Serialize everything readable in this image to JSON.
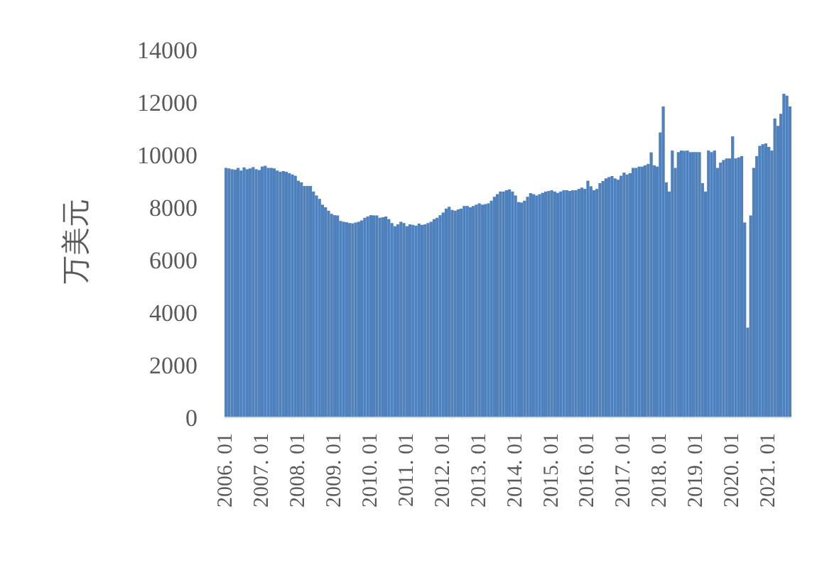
{
  "chart_data": {
    "type": "bar",
    "ylabel": "万美元",
    "color": "#4f81bd",
    "ylim": [
      0,
      14000
    ],
    "yticks": [
      0,
      2000,
      4000,
      6000,
      8000,
      10000,
      12000,
      14000
    ],
    "grid": false,
    "categories": [
      "2006. 01",
      null,
      null,
      null,
      null,
      null,
      null,
      null,
      null,
      null,
      null,
      null,
      "2007. 01",
      null,
      null,
      null,
      null,
      null,
      null,
      null,
      null,
      null,
      null,
      null,
      "2008. 01",
      null,
      null,
      null,
      null,
      null,
      null,
      null,
      null,
      null,
      null,
      null,
      "2009. 01",
      null,
      null,
      null,
      null,
      null,
      null,
      null,
      null,
      null,
      null,
      null,
      "2010. 01",
      null,
      null,
      null,
      null,
      null,
      null,
      null,
      null,
      null,
      null,
      null,
      "2011. 01",
      null,
      null,
      null,
      null,
      null,
      null,
      null,
      null,
      null,
      null,
      null,
      "2012. 01",
      null,
      null,
      null,
      null,
      null,
      null,
      null,
      null,
      null,
      null,
      null,
      "2013. 01",
      null,
      null,
      null,
      null,
      null,
      null,
      null,
      null,
      null,
      null,
      null,
      "2014. 01",
      null,
      null,
      null,
      null,
      null,
      null,
      null,
      null,
      null,
      null,
      null,
      "2015. 01",
      null,
      null,
      null,
      null,
      null,
      null,
      null,
      null,
      null,
      null,
      null,
      "2016. 01",
      null,
      null,
      null,
      null,
      null,
      null,
      null,
      null,
      null,
      null,
      null,
      "2017. 01",
      null,
      null,
      null,
      null,
      null,
      null,
      null,
      null,
      null,
      null,
      null,
      "2018. 01",
      null,
      null,
      null,
      null,
      null,
      null,
      null,
      null,
      null,
      null,
      null,
      "2019. 01",
      null,
      null,
      null,
      null,
      null,
      null,
      null,
      null,
      null,
      null,
      null,
      "2020. 01",
      null,
      null,
      null,
      null,
      null,
      null,
      null,
      null,
      null,
      null,
      null,
      "2021. 01",
      null,
      null,
      null,
      null,
      null,
      null,
      null
    ],
    "values": [
      9500,
      9480,
      9450,
      9430,
      9500,
      9400,
      9520,
      9450,
      9480,
      9530,
      9450,
      9420,
      9550,
      9580,
      9500,
      9500,
      9480,
      9400,
      9350,
      9380,
      9350,
      9300,
      9250,
      9200,
      9010,
      8950,
      8810,
      8810,
      8810,
      8600,
      8450,
      8320,
      8100,
      8000,
      7870,
      7750,
      7700,
      7690,
      7480,
      7450,
      7430,
      7400,
      7390,
      7420,
      7450,
      7500,
      7600,
      7650,
      7700,
      7690,
      7690,
      7600,
      7620,
      7650,
      7550,
      7400,
      7280,
      7350,
      7450,
      7400,
      7280,
      7350,
      7330,
      7300,
      7380,
      7330,
      7350,
      7400,
      7450,
      7550,
      7600,
      7700,
      7800,
      7950,
      8020,
      7900,
      7870,
      7920,
      7950,
      8050,
      8050,
      8000,
      8050,
      8100,
      8150,
      8100,
      8120,
      8150,
      8250,
      8400,
      8500,
      8600,
      8600,
      8650,
      8680,
      8600,
      8450,
      8200,
      8180,
      8250,
      8400,
      8540,
      8500,
      8450,
      8500,
      8550,
      8600,
      8620,
      8650,
      8600,
      8550,
      8600,
      8650,
      8650,
      8620,
      8650,
      8650,
      8700,
      8750,
      8700,
      9010,
      8800,
      8650,
      8700,
      8920,
      9000,
      9100,
      9150,
      9190,
      9100,
      9050,
      9200,
      9320,
      9250,
      9300,
      9500,
      9500,
      9550,
      9550,
      9600,
      9650,
      10090,
      9600,
      9550,
      10850,
      11840,
      8950,
      8600,
      10160,
      9500,
      10100,
      10160,
      10150,
      10160,
      10100,
      10100,
      10100,
      10100,
      8920,
      8600,
      10160,
      10100,
      10160,
      9500,
      9700,
      9800,
      9860,
      9860,
      10700,
      9860,
      9900,
      9950,
      7420,
      3420,
      7690,
      9500,
      9950,
      10340,
      10400,
      10430,
      10300,
      10160,
      11380,
      11100,
      11560,
      12320,
      12250,
      11840
    ]
  }
}
